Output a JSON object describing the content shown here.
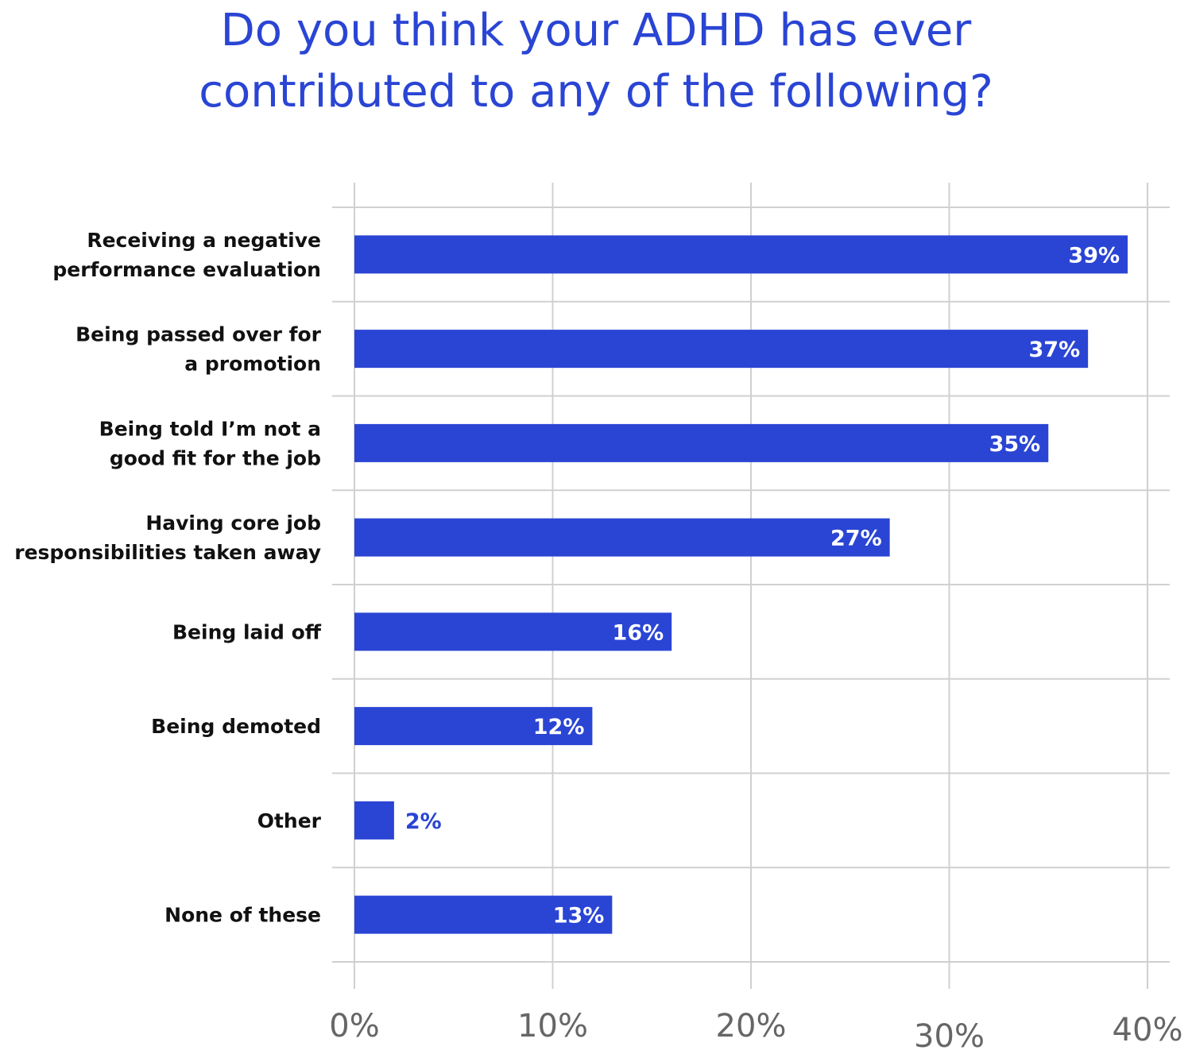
{
  "chart_data": {
    "type": "bar",
    "orientation": "horizontal",
    "title": [
      "Do you think your ADHD has ever",
      "contributed to any of the following?"
    ],
    "categories": [
      [
        "Receiving a negative",
        "performance evaluation"
      ],
      [
        "Being passed over for",
        "a promotion"
      ],
      [
        "Being told I’m not a",
        "good fit for the job"
      ],
      [
        "Having core job",
        "responsibilities taken away"
      ],
      [
        "Being laid off"
      ],
      [
        "Being demoted"
      ],
      [
        "Other"
      ],
      [
        "None of these"
      ]
    ],
    "values": [
      39,
      37,
      35,
      27,
      16,
      12,
      2,
      13
    ],
    "value_labels": [
      "39%",
      "37%",
      "35%",
      "27%",
      "16%",
      "12%",
      "2%",
      "13%"
    ],
    "xlim": [
      0,
      40
    ],
    "xticks": [
      0,
      10,
      20,
      30,
      40
    ],
    "xtick_labels": [
      "0%",
      "10%",
      "20%",
      "30%",
      "40%"
    ],
    "grid": true,
    "colors": {
      "bar": "#2a45d4",
      "title": "#2a45d4",
      "grid": "#d0d0d0",
      "tick": "#666666"
    }
  }
}
